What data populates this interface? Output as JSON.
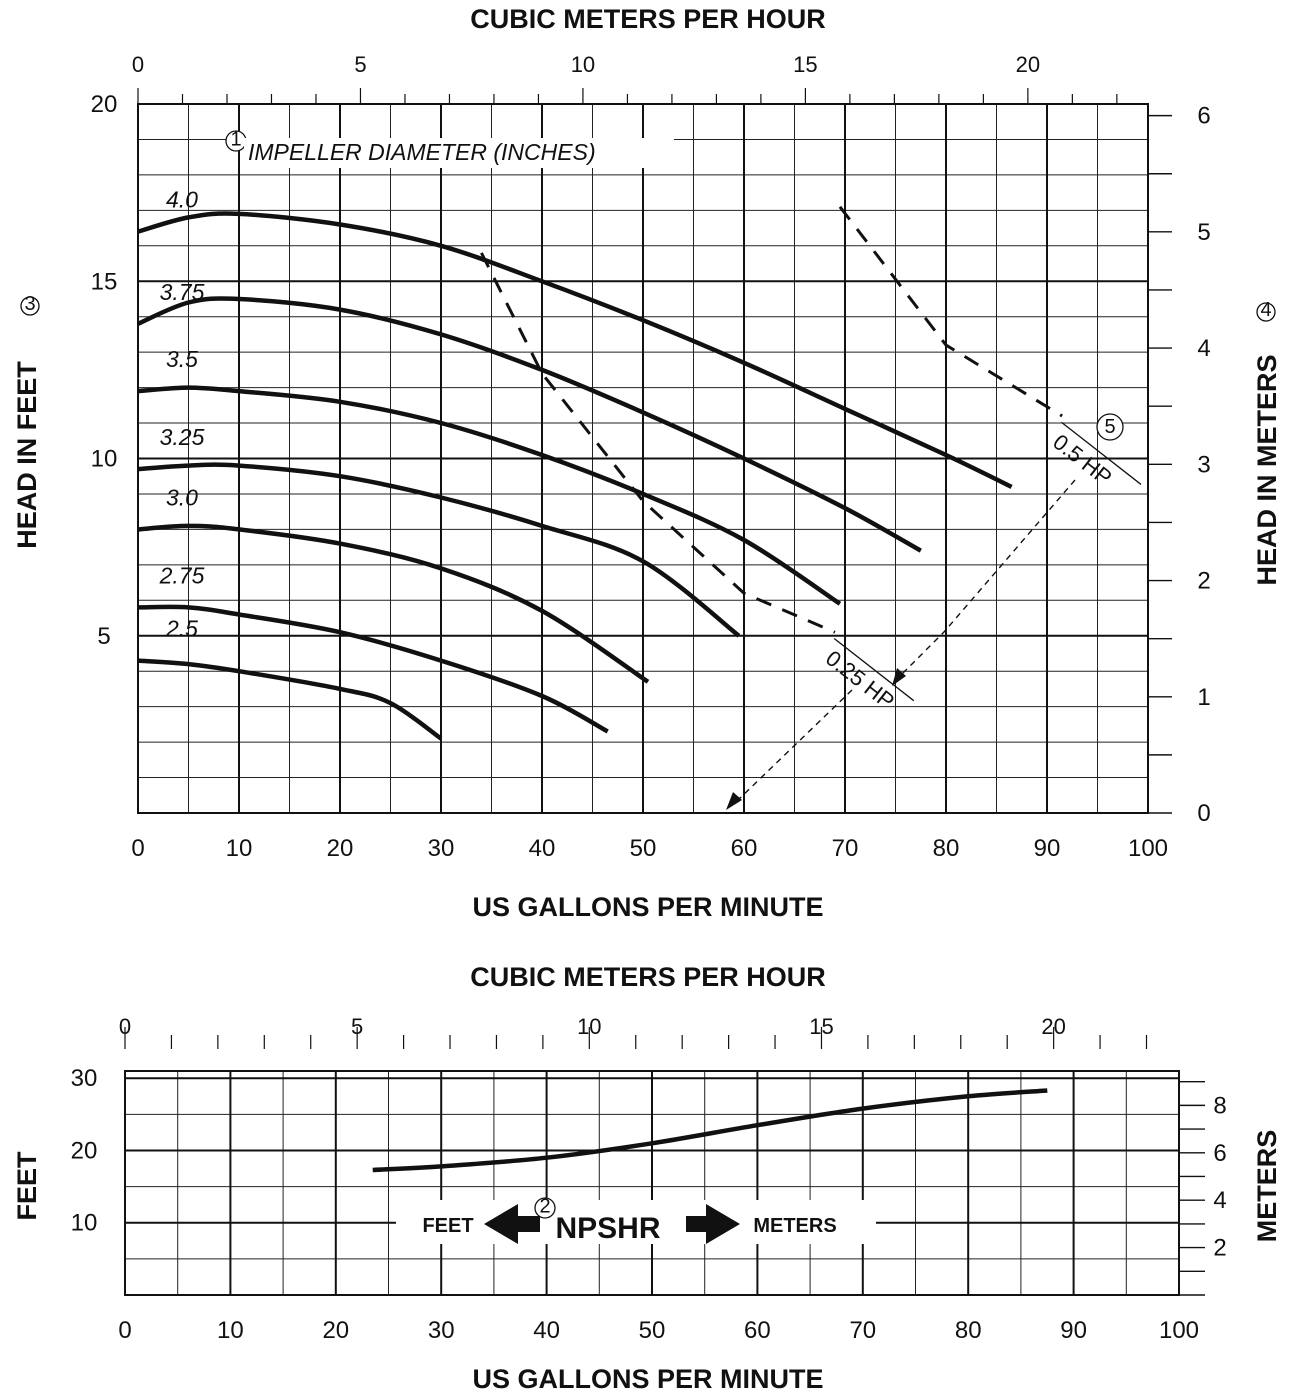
{
  "chart_data": [
    {
      "type": "line",
      "name": "pump-performance",
      "title": "",
      "top_axis": {
        "label": "CUBIC METERS PER HOUR",
        "range": [
          0,
          22.7
        ],
        "ticks": [
          "0",
          "5",
          "10",
          "15",
          "20"
        ],
        "tick_values": [
          0,
          5,
          10,
          15,
          20
        ],
        "minor_step": 1
      },
      "bottom_axis": {
        "label": "US GALLONS PER MINUTE",
        "range": [
          0,
          100
        ],
        "ticks": [
          "0",
          "10",
          "20",
          "30",
          "40",
          "50",
          "60",
          "70",
          "80",
          "90",
          "100"
        ],
        "tick_values": [
          0,
          10,
          20,
          30,
          40,
          50,
          60,
          70,
          80,
          90,
          100
        ]
      },
      "left_axis": {
        "label": "HEAD IN FEET",
        "marker": "3",
        "range": [
          0,
          20
        ],
        "ticks": [
          "5",
          "10",
          "15",
          "20"
        ],
        "tick_values": [
          5,
          10,
          15,
          20
        ]
      },
      "right_axis": {
        "label": "HEAD IN METERS",
        "marker": "4",
        "range": [
          0,
          6.1
        ],
        "ticks": [
          "0",
          "1",
          "2",
          "3",
          "4",
          "5",
          "6"
        ],
        "tick_values": [
          0,
          1,
          2,
          3,
          4,
          5,
          6
        ],
        "minor_step": 0.5
      },
      "grid": true,
      "annotation": {
        "text": "IMPELLER DIAMETER (INCHES)",
        "marker": "1"
      },
      "series": [
        {
          "name": "4.0",
          "points": [
            [
              0,
              16.4
            ],
            [
              5,
              16.8
            ],
            [
              10,
              16.9
            ],
            [
              20,
              16.6
            ],
            [
              30,
              16.0
            ],
            [
              40,
              15.0
            ],
            [
              50,
              13.9
            ],
            [
              60,
              12.7
            ],
            [
              70,
              11.4
            ],
            [
              80,
              10.1
            ],
            [
              86.5,
              9.2
            ]
          ]
        },
        {
          "name": "3.75",
          "points": [
            [
              0,
              13.8
            ],
            [
              5,
              14.4
            ],
            [
              10,
              14.5
            ],
            [
              20,
              14.2
            ],
            [
              30,
              13.5
            ],
            [
              40,
              12.5
            ],
            [
              50,
              11.3
            ],
            [
              60,
              10.0
            ],
            [
              70,
              8.6
            ],
            [
              77.5,
              7.4
            ]
          ]
        },
        {
          "name": "3.5",
          "points": [
            [
              0,
              11.9
            ],
            [
              5,
              12.0
            ],
            [
              10,
              11.9
            ],
            [
              20,
              11.6
            ],
            [
              30,
              11.0
            ],
            [
              40,
              10.1
            ],
            [
              50,
              9.0
            ],
            [
              60,
              7.7
            ],
            [
              69.5,
              5.9
            ]
          ]
        },
        {
          "name": "3.25",
          "points": [
            [
              0,
              9.7
            ],
            [
              5,
              9.8
            ],
            [
              10,
              9.8
            ],
            [
              20,
              9.5
            ],
            [
              30,
              8.9
            ],
            [
              40,
              8.1
            ],
            [
              50,
              7.1
            ],
            [
              59.5,
              5.0
            ]
          ]
        },
        {
          "name": "3.0",
          "points": [
            [
              0,
              8.0
            ],
            [
              5,
              8.1
            ],
            [
              10,
              8.0
            ],
            [
              20,
              7.6
            ],
            [
              30,
              6.9
            ],
            [
              40,
              5.7
            ],
            [
              50.5,
              3.7
            ]
          ]
        },
        {
          "name": "2.75",
          "points": [
            [
              0,
              5.8
            ],
            [
              5,
              5.8
            ],
            [
              10,
              5.6
            ],
            [
              20,
              5.1
            ],
            [
              30,
              4.3
            ],
            [
              40,
              3.3
            ],
            [
              46.5,
              2.3
            ]
          ]
        },
        {
          "name": "2.5",
          "points": [
            [
              0,
              4.3
            ],
            [
              5,
              4.2
            ],
            [
              10,
              4.0
            ],
            [
              20,
              3.5
            ],
            [
              25,
              3.1
            ],
            [
              30,
              2.1
            ]
          ]
        }
      ],
      "power_lines": [
        {
          "label": "0.25 HP",
          "style": "dashed",
          "points": [
            [
              34,
              15.8
            ],
            [
              40,
              12.4
            ],
            [
              50,
              8.8
            ],
            [
              60,
              6.2
            ],
            [
              69,
              5.1
            ]
          ]
        },
        {
          "label": "0.5 HP",
          "marker": "5",
          "style": "dashed",
          "points": [
            [
              69.5,
              17.1
            ],
            [
              80,
              13.2
            ],
            [
              91.5,
              11.2
            ]
          ]
        }
      ]
    },
    {
      "type": "line",
      "name": "npshr",
      "title": "",
      "top_axis": {
        "label": "CUBIC METERS PER HOUR",
        "range": [
          0,
          22.7
        ],
        "ticks": [
          "0",
          "5",
          "10",
          "15",
          "20"
        ],
        "tick_values": [
          0,
          5,
          10,
          15,
          20
        ],
        "minor_step": 1
      },
      "bottom_axis": {
        "label": "US GALLONS PER MINUTE",
        "range": [
          0,
          100
        ],
        "ticks": [
          "0",
          "10",
          "20",
          "30",
          "40",
          "50",
          "60",
          "70",
          "80",
          "90",
          "100"
        ],
        "tick_values": [
          0,
          10,
          20,
          30,
          40,
          50,
          60,
          70,
          80,
          90,
          100
        ]
      },
      "left_axis": {
        "label": "FEET",
        "range": [
          0,
          31
        ],
        "ticks": [
          "10",
          "20",
          "30"
        ],
        "tick_values": [
          10,
          20,
          30
        ]
      },
      "right_axis": {
        "label": "METERS",
        "range": [
          0,
          9.45
        ],
        "ticks": [
          "2",
          "4",
          "6",
          "8"
        ],
        "tick_values": [
          2,
          4,
          6,
          8
        ],
        "minor_step": 1
      },
      "grid": true,
      "legend": {
        "text": "NPSHR",
        "marker": "2",
        "left_text": "FEET",
        "right_text": "METERS"
      },
      "series": [
        {
          "name": "NPSHR",
          "points": [
            [
              23.5,
              17.3
            ],
            [
              30,
              17.8
            ],
            [
              40,
              19.0
            ],
            [
              50,
              21.0
            ],
            [
              60,
              23.5
            ],
            [
              70,
              25.8
            ],
            [
              80,
              27.5
            ],
            [
              87.5,
              28.3
            ]
          ]
        }
      ]
    }
  ]
}
